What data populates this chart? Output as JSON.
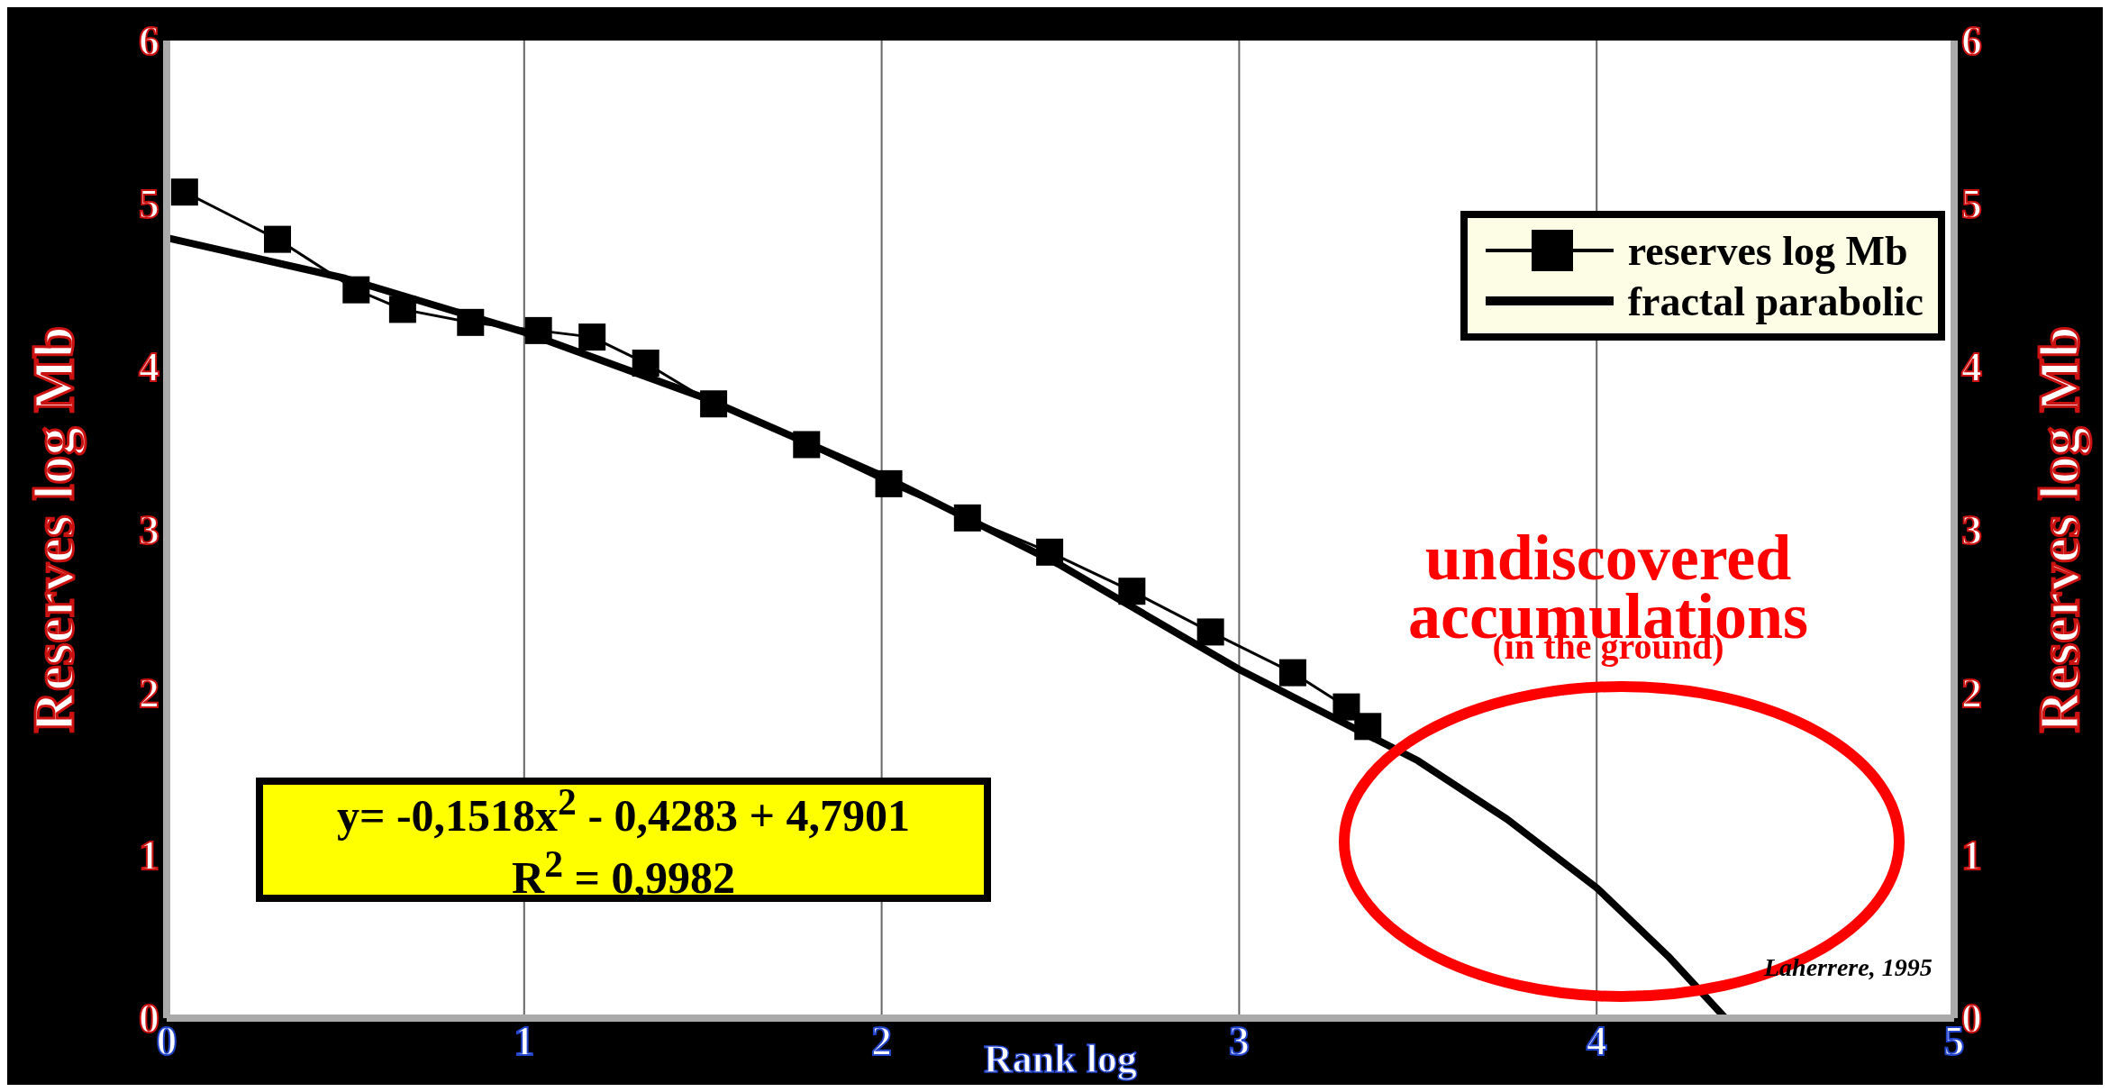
{
  "chart_data": {
    "type": "line",
    "xlabel": "Rank log",
    "ylabel": "Reserves log Mb",
    "y2label": "Reserves log Mb",
    "xlim": [
      0,
      5
    ],
    "xticks": [
      0,
      1,
      2,
      3,
      4,
      5
    ],
    "ylim": [
      0,
      6
    ],
    "yticks": [
      0,
      1,
      2,
      3,
      4,
      5,
      6
    ],
    "y2lim": [
      0,
      6
    ],
    "y2ticks": [
      0,
      1,
      2,
      3,
      4,
      5,
      6
    ],
    "grid": true,
    "legend": "top right",
    "series": [
      {
        "name": "reserves log Mb",
        "color": "#000000",
        "marker": "square",
        "x": [
          0.05,
          0.31,
          0.53,
          0.66,
          0.85,
          1.04,
          1.19,
          1.34,
          1.53,
          1.79,
          2.02,
          2.24,
          2.47,
          2.7,
          2.92,
          3.15,
          3.3,
          3.36
        ],
        "values": [
          5.07,
          4.78,
          4.47,
          4.35,
          4.27,
          4.22,
          4.18,
          4.02,
          3.77,
          3.52,
          3.28,
          3.07,
          2.86,
          2.62,
          2.37,
          2.12,
          1.91,
          1.79
        ]
      },
      {
        "name": "fractal parabolic",
        "color": "#000000",
        "marker": "none",
        "x": [
          0,
          0.5,
          1,
          1.5,
          2,
          2.5,
          3,
          3.5,
          3.75,
          4,
          4.2,
          4.36
        ],
        "values": [
          4.79,
          4.54,
          4.21,
          3.81,
          3.33,
          2.78,
          2.14,
          1.58,
          1.22,
          0.8,
          0.38,
          0
        ]
      }
    ],
    "annotations": [
      "undiscovered",
      "accumulations",
      "(in the ground)",
      "y= -0,1518x$^{2}$ - 0,4283 + 4,7901",
      "R$^{2}$ = 0,9982",
      "Laherrere, 1995"
    ]
  }
}
